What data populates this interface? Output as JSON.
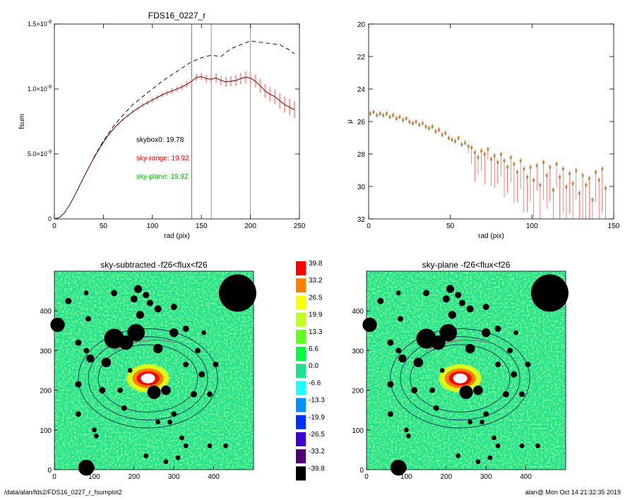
{
  "footer": {
    "path": "/data/alan/fds2/FDS16_0227_r_fsumplot2",
    "stamp": "alan@  Mon Oct 14 21:32:35 2019"
  },
  "colors": {
    "profile": "#d33c3c",
    "error_band": "#f4a6a0",
    "dashed": "#000000",
    "sky_range": "#ff0000",
    "sky_plane": "#00bb00",
    "mu_points_a": "#4caf50",
    "mu_points_b": "#e0803a"
  },
  "chart_data": [
    {
      "id": "fsum",
      "type": "line",
      "title": "FDS16_0227_r",
      "xlabel": "rad (pix)",
      "ylabel": "fsum",
      "xlim": [
        0,
        250
      ],
      "ylim": [
        0,
        1.5e-08
      ],
      "xticks": [
        0,
        50,
        100,
        150,
        200,
        250
      ],
      "yticks": [
        {
          "v": 0,
          "label": "0"
        },
        {
          "v": 5e-09,
          "label": "5.0×10",
          "exp": "-9"
        },
        {
          "v": 1e-08,
          "label": "1.0×10",
          "exp": "-8"
        },
        {
          "v": 1.5e-08,
          "label": "1.5×10",
          "exp": "-8"
        }
      ],
      "vlines": [
        {
          "x": 140,
          "color": "#ff0000"
        },
        {
          "x": 160,
          "color": "#808080"
        },
        {
          "x": 200,
          "color": "#808080"
        }
      ],
      "annotations": [
        {
          "text": "skybox0: 19.78",
          "color": "#000000"
        },
        {
          "text": "sky-range: 19.92",
          "color": "#ff0000"
        },
        {
          "text": "sky-plane: 19.92",
          "color": "#00bb00"
        }
      ],
      "series": [
        {
          "style": "solid",
          "x": [
            0,
            5,
            10,
            15,
            20,
            25,
            30,
            35,
            40,
            45,
            50,
            55,
            60,
            65,
            70,
            75,
            80,
            85,
            90,
            95,
            100,
            105,
            110,
            115,
            120,
            125,
            130,
            135,
            140,
            145,
            150,
            155,
            160,
            165,
            170,
            175,
            180,
            185,
            190,
            195,
            200,
            205,
            210,
            215,
            220,
            225,
            230,
            235,
            240,
            245
          ],
          "y": [
            0,
            1e-10,
            4.5e-10,
            1e-09,
            1.7e-09,
            2.45e-09,
            3.2e-09,
            3.95e-09,
            4.65e-09,
            5.3e-09,
            5.9e-09,
            6.45e-09,
            6.9e-09,
            7.3e-09,
            7.65e-09,
            7.95e-09,
            8.25e-09,
            8.5e-09,
            8.75e-09,
            8.95e-09,
            9.15e-09,
            9.35e-09,
            9.55e-09,
            9.7e-09,
            9.85e-09,
            1e-08,
            1.015e-08,
            1.035e-08,
            1.06e-08,
            1.09e-08,
            1.095e-08,
            1.08e-08,
            1.075e-08,
            1.085e-08,
            1.065e-08,
            1.055e-08,
            1.06e-08,
            1.065e-08,
            1.08e-08,
            1.09e-08,
            1.085e-08,
            1.06e-08,
            1.025e-08,
            9.85e-09,
            9.6e-09,
            9.4e-09,
            9.1e-09,
            8.8e-09,
            8.6e-09,
            8.4e-09
          ],
          "err": [
            0,
            0,
            0,
            0,
            0,
            2e-11,
            3e-11,
            4e-11,
            5e-11,
            6e-11,
            7e-11,
            8e-11,
            9e-11,
            1e-10,
            1.1e-10,
            1.2e-10,
            1.3e-10,
            1.4e-10,
            1.5e-10,
            1.6e-10,
            1.7e-10,
            1.8e-10,
            1.9e-10,
            2e-10,
            2.1e-10,
            2.2e-10,
            2.3e-10,
            2.4e-10,
            2.5e-10,
            2.6e-10,
            2.8e-10,
            3e-10,
            3.2e-10,
            3.4e-10,
            3.6e-10,
            3.8e-10,
            4e-10,
            4.2e-10,
            4.4e-10,
            4.6e-10,
            4.8e-10,
            5e-10,
            5.2e-10,
            5.4e-10,
            5.6e-10,
            5.8e-10,
            6e-10,
            6.2e-10,
            6.4e-10,
            6.6e-10
          ]
        },
        {
          "style": "dashed",
          "x": [
            40,
            50,
            60,
            70,
            80,
            90,
            100,
            110,
            120,
            130,
            140,
            150,
            160,
            170,
            180,
            190,
            200,
            210,
            220,
            230,
            240,
            245
          ],
          "y": [
            4.7e-09,
            6e-09,
            7.1e-09,
            8e-09,
            8.8e-09,
            9.4e-09,
            1e-08,
            1.06e-08,
            1.11e-08,
            1.16e-08,
            1.21e-08,
            1.24e-08,
            1.26e-08,
            1.25e-08,
            1.31e-08,
            1.34e-08,
            1.37e-08,
            1.36e-08,
            1.35e-08,
            1.34e-08,
            1.3e-08,
            1.27e-08
          ]
        }
      ]
    },
    {
      "id": "mu",
      "type": "scatter",
      "title": "",
      "xlabel": "rad (pix)",
      "ylabel": "μ",
      "xlim": [
        0,
        150
      ],
      "ylim": [
        32,
        20
      ],
      "xticks": [
        0,
        50,
        100,
        150
      ],
      "yticks": [
        20,
        22,
        24,
        26,
        28,
        30,
        32
      ],
      "points": [
        [
          1,
          25.5
        ],
        [
          3,
          25.4
        ],
        [
          5,
          25.6
        ],
        [
          7,
          25.5
        ],
        [
          9,
          25.6
        ],
        [
          11,
          25.5
        ],
        [
          13,
          25.7
        ],
        [
          15,
          25.6
        ],
        [
          17,
          25.8
        ],
        [
          19,
          25.7
        ],
        [
          21,
          25.9
        ],
        [
          23,
          25.8
        ],
        [
          25,
          26.0
        ],
        [
          27,
          26.1
        ],
        [
          29,
          26.0
        ],
        [
          31,
          26.2
        ],
        [
          33,
          26.1
        ],
        [
          35,
          26.3
        ],
        [
          37,
          26.4
        ],
        [
          39,
          26.3
        ],
        [
          41,
          26.6
        ],
        [
          43,
          26.5
        ],
        [
          45,
          26.8
        ],
        [
          47,
          26.7
        ],
        [
          49,
          27.0
        ],
        [
          51,
          27.1
        ],
        [
          53,
          27.2
        ],
        [
          55,
          27.0
        ],
        [
          57,
          27.4
        ],
        [
          59,
          27.3
        ],
        [
          61,
          27.5
        ],
        [
          63,
          27.6
        ],
        [
          65,
          27.9
        ],
        [
          67,
          28.2
        ],
        [
          69,
          27.8
        ],
        [
          71,
          28.0
        ],
        [
          73,
          27.7
        ],
        [
          75,
          28.3
        ],
        [
          77,
          28.1
        ],
        [
          79,
          28.5
        ],
        [
          81,
          28.0
        ],
        [
          83,
          28.4
        ],
        [
          85,
          28.8
        ],
        [
          87,
          28.2
        ],
        [
          89,
          28.6
        ],
        [
          91,
          29.1
        ],
        [
          93,
          28.4
        ],
        [
          95,
          28.9
        ],
        [
          97,
          29.4
        ],
        [
          99,
          28.8
        ],
        [
          101,
          29.6
        ],
        [
          103,
          28.7
        ],
        [
          105,
          29.9
        ],
        [
          107,
          28.5
        ],
        [
          109,
          29.3
        ],
        [
          111,
          28.8
        ],
        [
          113,
          30.2
        ],
        [
          115,
          28.6
        ],
        [
          117,
          29.4
        ],
        [
          119,
          28.9
        ],
        [
          121,
          30.0
        ],
        [
          123,
          29.2
        ],
        [
          125,
          29.8
        ],
        [
          127,
          29.0
        ],
        [
          129,
          30.4
        ],
        [
          131,
          29.3
        ],
        [
          133,
          29.9
        ],
        [
          135,
          29.5
        ],
        [
          137,
          30.8
        ],
        [
          139,
          29.1
        ],
        [
          141,
          29.6
        ],
        [
          143,
          28.9
        ],
        [
          145,
          30.1
        ]
      ]
    },
    {
      "id": "sky_subtracted",
      "type": "heatmap",
      "title": "sky-subtracted -f26<flux<f26",
      "xlim": [
        0,
        500
      ],
      "ylim": [
        0,
        500
      ],
      "xticks": [
        0,
        100,
        200,
        300,
        400
      ],
      "yticks": [
        0,
        100,
        200,
        300,
        400
      ]
    },
    {
      "id": "sky_plane",
      "type": "heatmap",
      "title": "sky-plane -f26<flux<f26",
      "xlim": [
        0,
        500
      ],
      "ylim": [
        0,
        500
      ],
      "xticks": [
        0,
        100,
        200,
        300,
        400
      ],
      "yticks": [
        0,
        100,
        200,
        300,
        400
      ]
    },
    {
      "id": "colorbar",
      "type": "colorbar",
      "levels": [
        {
          "label": "39.8",
          "color": "#ff0000"
        },
        {
          "label": "33.2",
          "color": "#ff8000"
        },
        {
          "label": "26.5",
          "color": "#ffff00"
        },
        {
          "label": "19.9",
          "color": "#c0ff20"
        },
        {
          "label": "13.3",
          "color": "#60ff20"
        },
        {
          "label": "6.6",
          "color": "#00ff40"
        },
        {
          "label": "0.0",
          "color": "#20e090"
        },
        {
          "label": "-6.6",
          "color": "#20ffff"
        },
        {
          "label": "-13.3",
          "color": "#0090ff"
        },
        {
          "label": "-19.9",
          "color": "#0030ff"
        },
        {
          "label": "-26.5",
          "color": "#4000d0"
        },
        {
          "label": "-33.2",
          "color": "#500070"
        },
        {
          "label": "-39.8",
          "color": "#000000"
        }
      ]
    }
  ]
}
